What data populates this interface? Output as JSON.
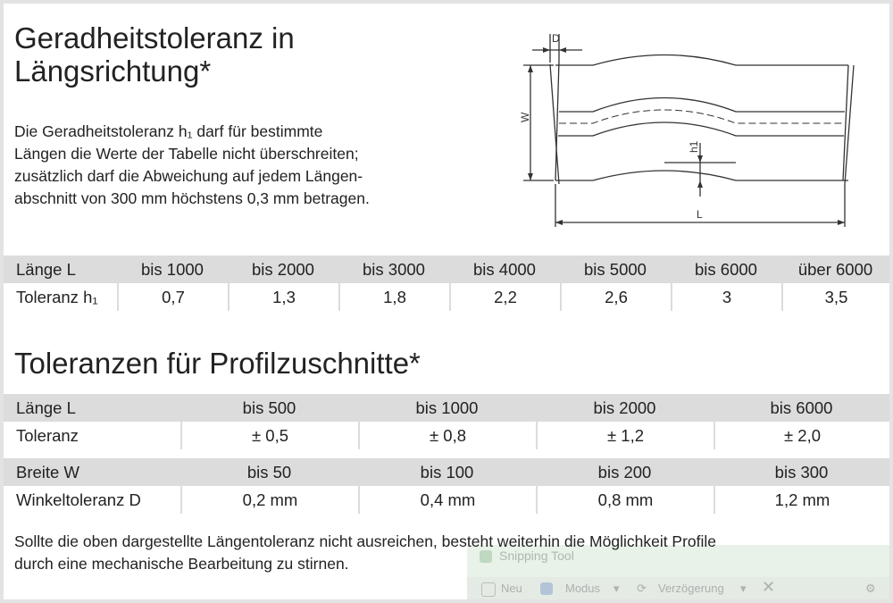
{
  "section1": {
    "title_line1": "Geradheitstoleranz in",
    "title_line2": "Längsrichtung*",
    "intro_line1": "Die Geradheitstoleranz h₁ darf für bestimmte",
    "intro_line2": "Längen die Werte der Tabelle nicht überschreiten;",
    "intro_line3": "zusätzlich darf die Abweichung auf jedem Längen-",
    "intro_line4": "abschnitt von 300 mm höchstens 0,3 mm betragen."
  },
  "drawing": {
    "label_d": "D",
    "label_w": "W",
    "label_h1": "h1",
    "label_l": "L"
  },
  "table1": {
    "header": [
      "Länge L",
      "bis 1000",
      "bis 2000",
      "bis 3000",
      "bis 4000",
      "bis 5000",
      "bis 6000",
      "über 6000"
    ],
    "row": [
      "Toleranz h₁",
      "0,7",
      "1,3",
      "1,8",
      "2,2",
      "2,6",
      "3",
      "3,5"
    ]
  },
  "section2": {
    "title": "Toleranzen für Profilzuschnitte*"
  },
  "table2": {
    "header": [
      "Länge L",
      "bis 500",
      "bis 1000",
      "bis 2000",
      "bis 6000"
    ],
    "row": [
      "Toleranz",
      "± 0,5",
      "± 0,8",
      "± 1,2",
      "± 2,0"
    ]
  },
  "table3": {
    "header": [
      "Breite W",
      "bis 50",
      "bis 100",
      "bis 200",
      "bis 300"
    ],
    "row": [
      "Winkeltoleranz D",
      "0,2 mm",
      "0,4 mm",
      "0,8 mm",
      "1,2 mm"
    ]
  },
  "note": {
    "line1": "Sollte die oben dargestellte Längentoleranz nicht ausreichen, besteht weiterhin die Möglichkeit Profile",
    "line2": "durch eine mechanische Bearbeitung zu stirnen."
  },
  "snipping_tool": {
    "title": "Snipping Tool",
    "new_label": "Neu",
    "mode_label": "Modus",
    "delay_label": "Verzögerung"
  }
}
